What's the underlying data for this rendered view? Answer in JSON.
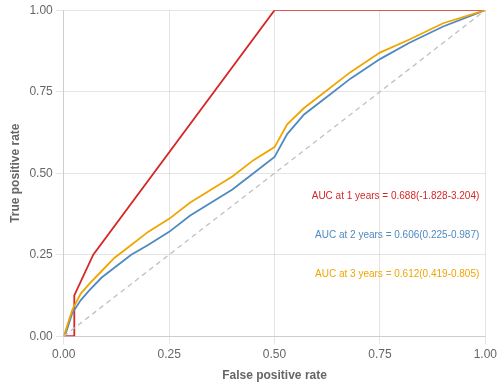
{
  "chart_data": {
    "type": "line",
    "xlabel": "False positive rate",
    "ylabel": "True positive rate",
    "xlim": [
      0.0,
      1.0
    ],
    "ylim": [
      0.0,
      1.0
    ],
    "xticks": [
      {
        "value": 0.0,
        "label": "0.00"
      },
      {
        "value": 0.25,
        "label": "0.25"
      },
      {
        "value": 0.5,
        "label": "0.50"
      },
      {
        "value": 0.75,
        "label": "0.75"
      },
      {
        "value": 1.0,
        "label": "1.00"
      }
    ],
    "yticks": [
      {
        "value": 0.0,
        "label": "0.00"
      },
      {
        "value": 0.25,
        "label": "0.25"
      },
      {
        "value": 0.5,
        "label": "0.50"
      },
      {
        "value": 0.75,
        "label": "0.75"
      },
      {
        "value": 1.0,
        "label": "1.00"
      }
    ],
    "grid": true,
    "series": [
      {
        "color": "#c0c0c0",
        "line_style": "dashed",
        "x": [
          0,
          1
        ],
        "values": [
          0,
          1
        ]
      },
      {
        "color": "#f0a500",
        "x": [
          0.0,
          0.005,
          0.01,
          0.02,
          0.04,
          0.06,
          0.09,
          0.12,
          0.16,
          0.2,
          0.25,
          0.3,
          0.35,
          0.4,
          0.45,
          0.5,
          0.53,
          0.57,
          0.62,
          0.68,
          0.75,
          0.82,
          0.9,
          1.0
        ],
        "values": [
          0.0,
          0.02,
          0.04,
          0.08,
          0.13,
          0.16,
          0.2,
          0.24,
          0.28,
          0.32,
          0.36,
          0.41,
          0.45,
          0.49,
          0.54,
          0.58,
          0.65,
          0.7,
          0.75,
          0.81,
          0.87,
          0.91,
          0.96,
          1.0
        ]
      },
      {
        "color": "#4e8abf",
        "x": [
          0.0,
          0.005,
          0.01,
          0.02,
          0.04,
          0.06,
          0.09,
          0.12,
          0.16,
          0.2,
          0.25,
          0.3,
          0.35,
          0.4,
          0.45,
          0.5,
          0.53,
          0.57,
          0.62,
          0.68,
          0.75,
          0.82,
          0.9,
          1.0
        ],
        "values": [
          0.0,
          0.01,
          0.03,
          0.07,
          0.11,
          0.14,
          0.18,
          0.21,
          0.25,
          0.28,
          0.32,
          0.37,
          0.41,
          0.45,
          0.5,
          0.55,
          0.62,
          0.68,
          0.73,
          0.79,
          0.85,
          0.9,
          0.95,
          1.0
        ]
      },
      {
        "color": "#d62728",
        "x": [
          0.0,
          0.02,
          0.025,
          0.025,
          0.07,
          0.5,
          0.5,
          1.0
        ],
        "values": [
          0.0,
          0.0,
          0.0,
          0.125,
          0.25,
          1.0,
          1.0,
          1.0
        ]
      }
    ],
    "annotations": [
      {
        "text": "AUC at 1 years = 0.688(-1.828-3.204)",
        "color": "#d62728"
      },
      {
        "text": "AUC at 2 years = 0.606(0.225-0.987)",
        "color": "#4e8abf"
      },
      {
        "text": "AUC at 3 years = 0.612(0.419-0.805)",
        "color": "#f0a500"
      }
    ]
  }
}
